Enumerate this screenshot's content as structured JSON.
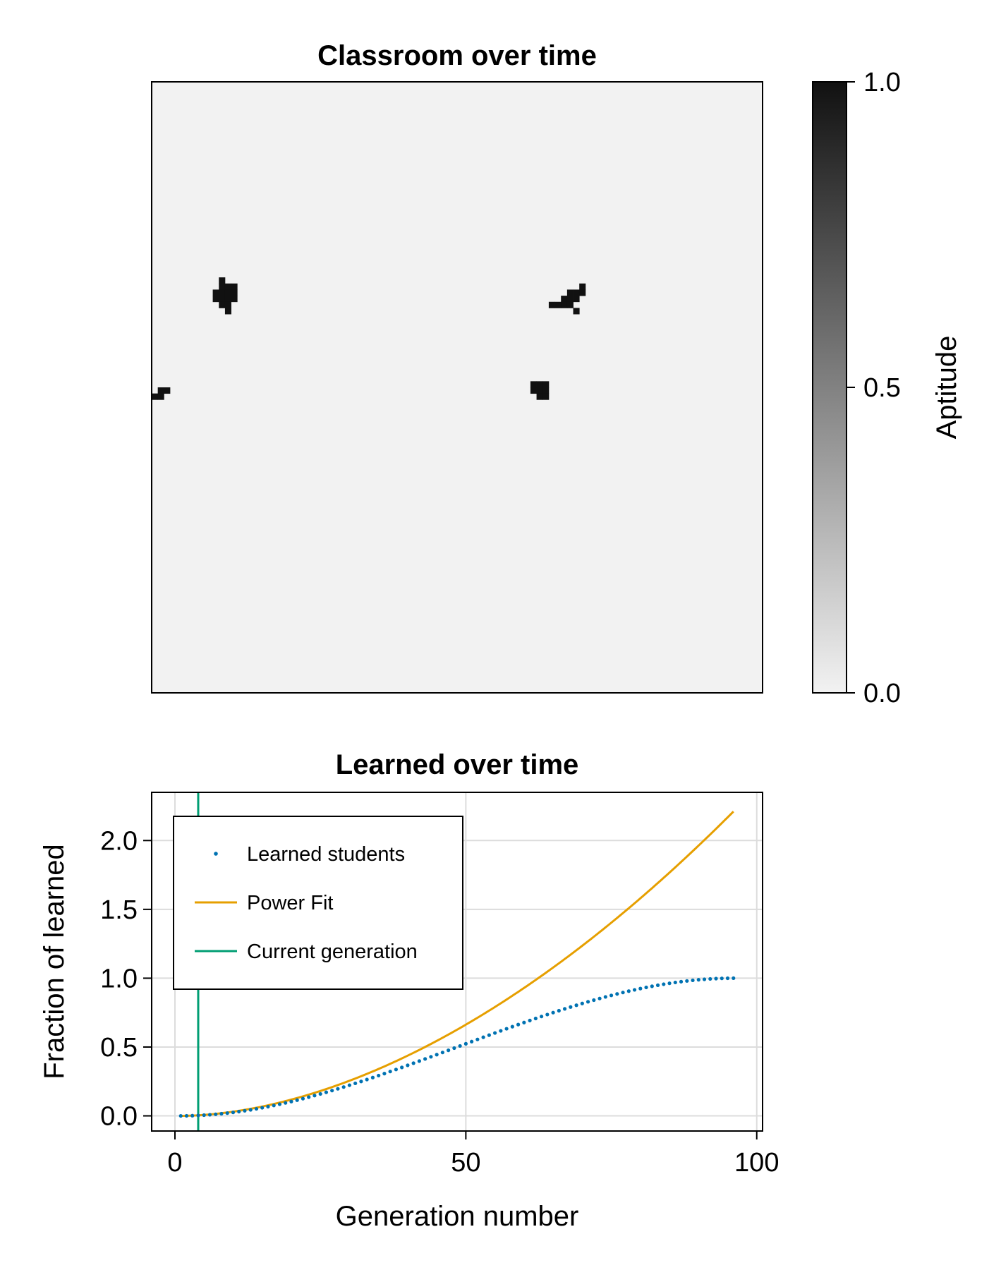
{
  "chart_data": [
    {
      "type": "heatmap",
      "title": "Classroom over time",
      "colorbar": {
        "label": "Aptitude",
        "range": [
          0.0,
          1.0
        ],
        "ticks": [
          "0.0",
          "0.5",
          "1.0"
        ],
        "colors": {
          "low": "#f2f2f2",
          "high": "#111111"
        }
      },
      "grid_size": [
        100,
        100
      ],
      "clusters": [
        {
          "cells": [
            [
              10,
              34
            ],
            [
              10,
              35
            ],
            [
              11,
              33
            ],
            [
              11,
              34
            ],
            [
              11,
              35
            ],
            [
              11,
              36
            ],
            [
              12,
              33
            ],
            [
              12,
              34
            ],
            [
              12,
              35
            ],
            [
              12,
              36
            ],
            [
              13,
              33
            ],
            [
              13,
              34
            ],
            [
              13,
              35
            ],
            [
              11,
              32
            ],
            [
              12,
              37
            ]
          ],
          "value": 1.0
        },
        {
          "cells": [
            [
              66,
              36
            ],
            [
              67,
              35
            ],
            [
              67,
              36
            ],
            [
              68,
              34
            ],
            [
              68,
              35
            ],
            [
              68,
              36
            ],
            [
              69,
              34
            ],
            [
              69,
              35
            ],
            [
              70,
              33
            ],
            [
              70,
              34
            ],
            [
              65,
              36
            ],
            [
              69,
              37
            ]
          ],
          "value": 1.0
        },
        {
          "cells": [
            [
              62,
              49
            ],
            [
              62,
              50
            ],
            [
              63,
              49
            ],
            [
              63,
              50
            ],
            [
              63,
              51
            ],
            [
              64,
              49
            ],
            [
              64,
              50
            ],
            [
              64,
              51
            ]
          ],
          "value": 1.0
        },
        {
          "cells": [
            [
              0,
              51
            ],
            [
              1,
              51
            ],
            [
              1,
              50
            ],
            [
              2,
              50
            ]
          ],
          "value": 1.0
        }
      ]
    },
    {
      "type": "scatter+line",
      "title": "Learned over time",
      "xlabel": "Generation number",
      "ylabel": "Fraction of learned",
      "xlim": [
        -4,
        101
      ],
      "ylim": [
        -0.11,
        2.35
      ],
      "xticks": [
        "0",
        "50",
        "100"
      ],
      "yticks": [
        "0.0",
        "0.5",
        "1.0",
        "1.5",
        "2.0"
      ],
      "grid": true,
      "legend_position": "top-left",
      "series": [
        {
          "name": "Learned students",
          "kind": "scatter",
          "color": "#0072b2",
          "x_range": [
            1,
            96
          ],
          "shape": "logistic",
          "y_start": 0.0,
          "y_end": 1.0
        },
        {
          "name": "Power Fit",
          "kind": "line",
          "color": "#e69f00",
          "x_range": [
            1,
            96
          ],
          "formula": "0.000556*(x-1)^1.82",
          "y_end": 2.24
        },
        {
          "name": "Current generation",
          "kind": "vline",
          "color": "#009e73",
          "x": 4
        }
      ]
    }
  ]
}
